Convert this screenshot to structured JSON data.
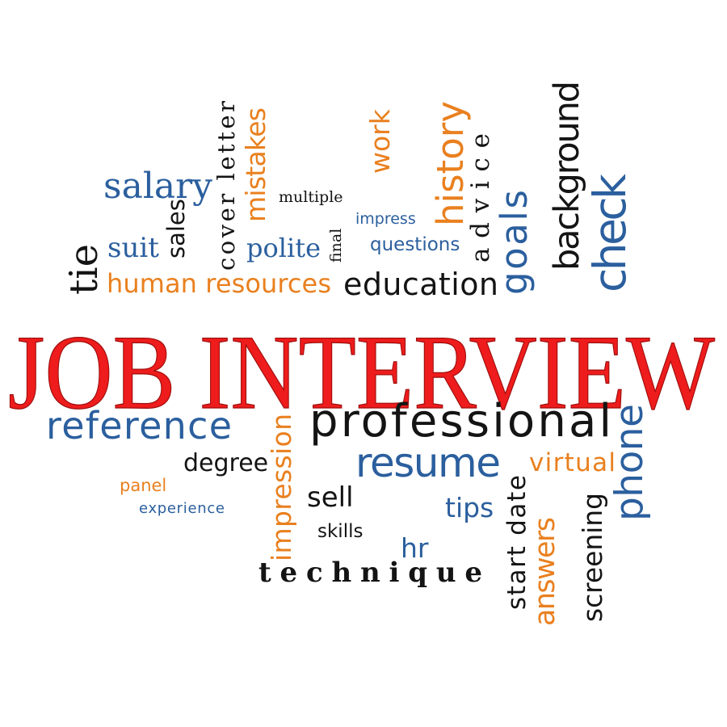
{
  "title": "JOB INTERVIEW",
  "words": [
    "salary",
    "suit",
    "polite",
    "multiple",
    "impress",
    "questions",
    "human resources",
    "education",
    "reference",
    "professional",
    "degree",
    "resume",
    "virtual",
    "panel",
    "experience",
    "sell",
    "tips",
    "skills",
    "hr",
    "technique",
    "tie",
    "sales",
    "cover letter",
    "mistakes",
    "final",
    "work",
    "history",
    "advice",
    "goals",
    "background",
    "check",
    "impression",
    "start date",
    "phone",
    "answers",
    "screening"
  ]
}
